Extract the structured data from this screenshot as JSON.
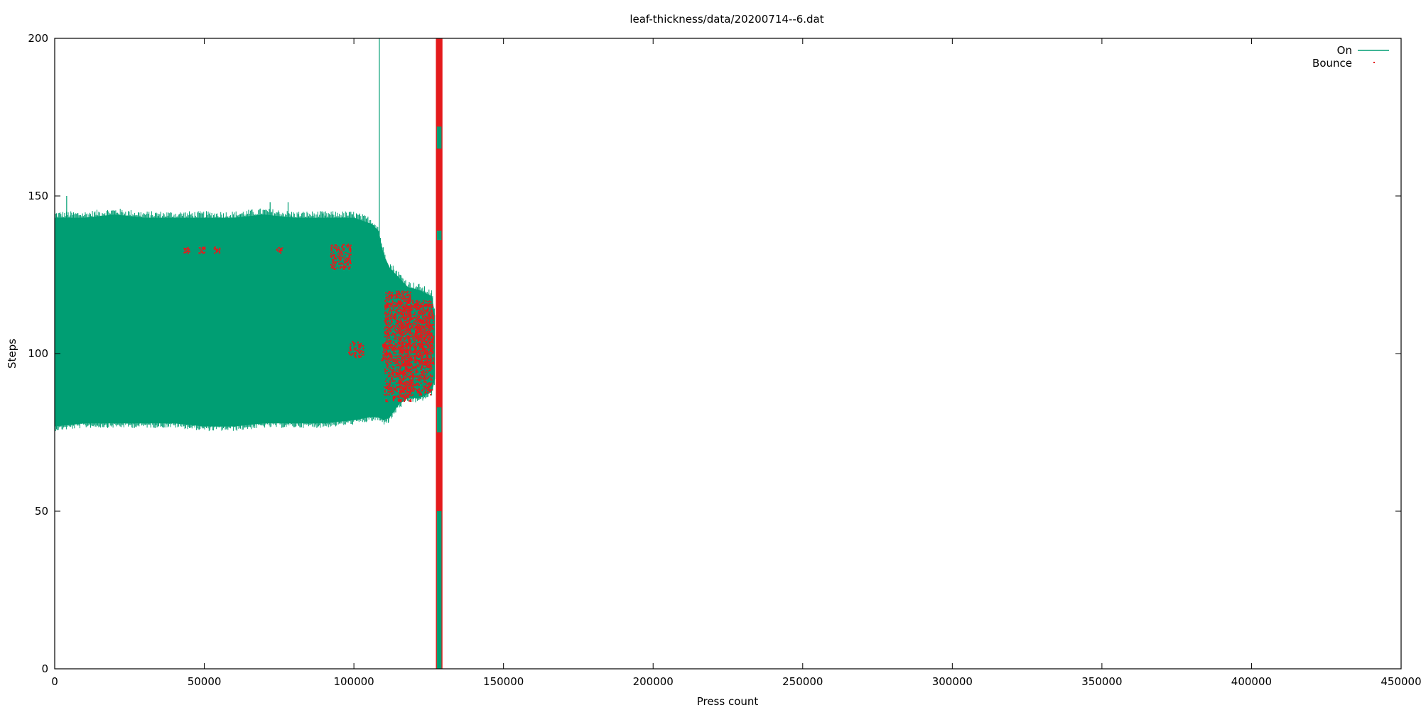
{
  "chart_data": {
    "type": "line",
    "title": "leaf-thickness/data/20200714--6.dat",
    "xlabel": "Press count",
    "ylabel": "Steps",
    "xlim": [
      0,
      450000
    ],
    "ylim": [
      0,
      200
    ],
    "x_ticks": [
      0,
      50000,
      100000,
      150000,
      200000,
      250000,
      300000,
      350000,
      400000,
      450000
    ],
    "y_ticks": [
      0,
      50,
      100,
      150,
      200
    ],
    "x_tick_labels": [
      "0",
      "50000",
      "100000",
      "150000",
      "200000",
      "250000",
      "300000",
      "350000",
      "400000",
      "450000"
    ],
    "y_tick_labels": [
      "0",
      "50",
      "100",
      "150",
      "200"
    ],
    "grid": false,
    "legend_position": "top-right",
    "series": [
      {
        "name": "On",
        "style": "lines",
        "color": "#009e73",
        "envelope": [
          {
            "x": 0,
            "low": 77,
            "high": 143
          },
          {
            "x": 10000,
            "low": 78,
            "high": 143
          },
          {
            "x": 20000,
            "low": 78,
            "high": 144
          },
          {
            "x": 30000,
            "low": 78,
            "high": 143
          },
          {
            "x": 40000,
            "low": 78,
            "high": 143
          },
          {
            "x": 50000,
            "low": 77,
            "high": 143
          },
          {
            "x": 60000,
            "low": 77,
            "high": 143
          },
          {
            "x": 70000,
            "low": 78,
            "high": 144
          },
          {
            "x": 80000,
            "low": 78,
            "high": 143
          },
          {
            "x": 90000,
            "low": 78,
            "high": 143
          },
          {
            "x": 100000,
            "low": 79,
            "high": 143
          },
          {
            "x": 106000,
            "low": 80,
            "high": 141
          },
          {
            "x": 108000,
            "low": 80,
            "high": 139
          },
          {
            "x": 110000,
            "low": 79,
            "high": 131
          },
          {
            "x": 112000,
            "low": 80,
            "high": 127
          },
          {
            "x": 115000,
            "low": 84,
            "high": 124
          },
          {
            "x": 118000,
            "low": 86,
            "high": 121
          },
          {
            "x": 122000,
            "low": 86,
            "high": 120
          },
          {
            "x": 126000,
            "low": 88,
            "high": 118
          },
          {
            "x": 127000,
            "low": 92,
            "high": 112
          }
        ],
        "spikes": [
          {
            "x": 4000,
            "y": 150
          },
          {
            "x": 72000,
            "y": 148
          },
          {
            "x": 78000,
            "y": 148
          },
          {
            "x": 108500,
            "y": 200
          },
          {
            "x": 111500,
            "y": 78
          }
        ],
        "burst": {
          "x_start": 127400,
          "x_end": 129600,
          "low": 0,
          "high": 200
        }
      },
      {
        "name": "Bounce",
        "style": "dots",
        "color": "#e41a1c",
        "clusters": [
          {
            "x_start": 43000,
            "x_end": 45000,
            "y_low": 132,
            "y_high": 134
          },
          {
            "x_start": 48000,
            "x_end": 50000,
            "y_low": 132,
            "y_high": 134
          },
          {
            "x_start": 53000,
            "x_end": 55000,
            "y_low": 132,
            "y_high": 134
          },
          {
            "x_start": 74000,
            "x_end": 76000,
            "y_low": 132,
            "y_high": 134
          },
          {
            "x_start": 92000,
            "x_end": 99000,
            "y_low": 127,
            "y_high": 135
          },
          {
            "x_start": 98000,
            "x_end": 103000,
            "y_low": 99,
            "y_high": 104
          },
          {
            "x_start": 109000,
            "x_end": 112000,
            "y_low": 98,
            "y_high": 104
          },
          {
            "x_start": 110000,
            "x_end": 119000,
            "y_low": 85,
            "y_high": 120
          },
          {
            "x_start": 115000,
            "x_end": 126000,
            "y_low": 87,
            "y_high": 117
          },
          {
            "x_start": 120000,
            "x_end": 126500,
            "y_low": 96,
            "y_high": 116
          }
        ],
        "burst": {
          "x_start": 127400,
          "x_end": 129600,
          "low": 0,
          "high": 200
        }
      }
    ]
  }
}
